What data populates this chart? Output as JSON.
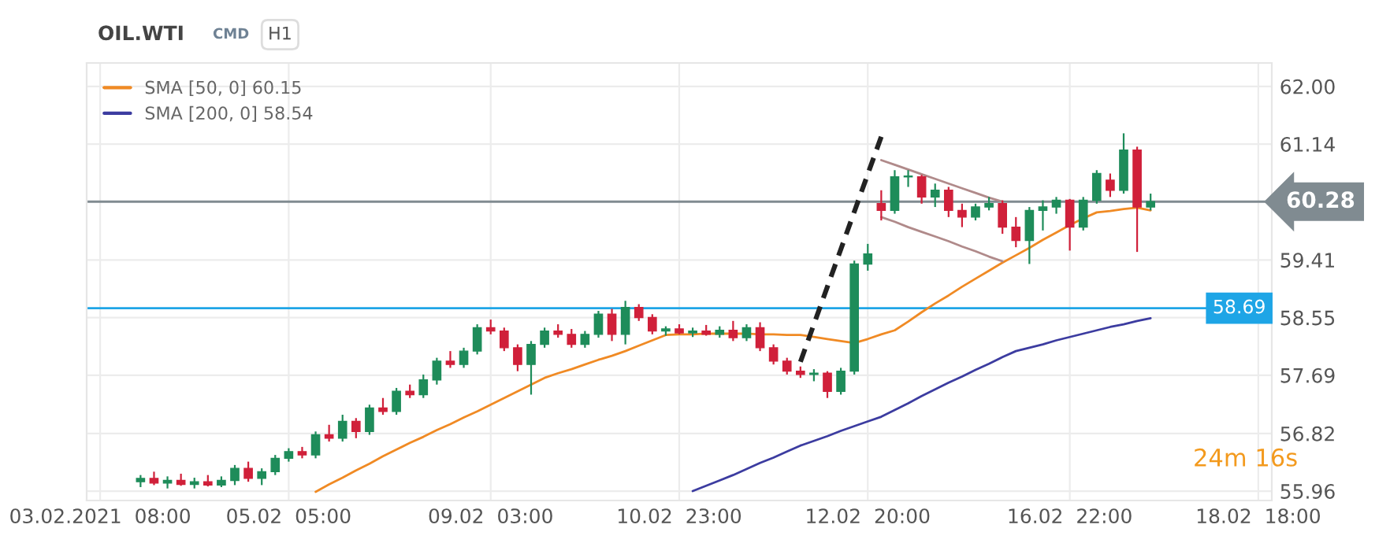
{
  "chart_data": {
    "type": "candlestick",
    "title": "OIL.WTI",
    "annotations": [
      "CMD",
      "H1",
      "24m 16s"
    ],
    "categories": [
      "03.02.2021  08:00",
      null,
      null,
      null,
      null,
      null,
      null,
      null,
      null,
      null,
      null,
      null,
      null,
      null,
      "05.02  05:00",
      null,
      null,
      null,
      null,
      null,
      null,
      null,
      null,
      null,
      null,
      null,
      null,
      null,
      null,
      "09.02  03:00",
      null,
      null,
      null,
      null,
      null,
      null,
      null,
      null,
      null,
      null,
      null,
      null,
      null,
      "10.02  23:00",
      null,
      null,
      null,
      null,
      null,
      null,
      null,
      null,
      null,
      null,
      null,
      null,
      null,
      "12.02  20:00",
      null,
      null,
      null,
      null,
      null,
      null,
      null,
      null,
      null,
      null,
      null,
      null,
      null,
      null,
      "16.02  22:00",
      null,
      null,
      null,
      null,
      null,
      null,
      null,
      null,
      null,
      null,
      null,
      null,
      null,
      "18.02  18:00"
    ],
    "ohlc": [
      null,
      null,
      null,
      [
        56.1,
        56.2,
        56.02,
        56.15
      ],
      [
        56.15,
        56.25,
        56.05,
        56.08
      ],
      [
        56.08,
        56.18,
        56.0,
        56.12
      ],
      [
        56.12,
        56.22,
        56.04,
        56.06
      ],
      [
        56.06,
        56.16,
        56.0,
        56.1
      ],
      [
        56.1,
        56.2,
        56.03,
        56.05
      ],
      [
        56.05,
        56.18,
        56.02,
        56.12
      ],
      [
        56.12,
        56.35,
        56.05,
        56.3
      ],
      [
        56.3,
        56.4,
        56.1,
        56.15
      ],
      [
        56.15,
        56.3,
        56.05,
        56.25
      ],
      [
        56.25,
        56.5,
        56.2,
        56.45
      ],
      [
        56.45,
        56.6,
        56.4,
        56.55
      ],
      [
        56.55,
        56.62,
        56.45,
        56.5
      ],
      [
        56.5,
        56.85,
        56.45,
        56.8
      ],
      [
        56.8,
        56.95,
        56.7,
        56.75
      ],
      [
        56.75,
        57.1,
        56.7,
        57.0
      ],
      [
        57.0,
        57.05,
        56.75,
        56.85
      ],
      [
        56.85,
        57.25,
        56.8,
        57.2
      ],
      [
        57.2,
        57.35,
        57.1,
        57.15
      ],
      [
        57.15,
        57.5,
        57.1,
        57.45
      ],
      [
        57.45,
        57.55,
        57.35,
        57.4
      ],
      [
        57.4,
        57.7,
        57.35,
        57.62
      ],
      [
        57.62,
        57.95,
        57.55,
        57.9
      ],
      [
        57.9,
        58.05,
        57.8,
        57.85
      ],
      [
        57.85,
        58.1,
        57.8,
        58.05
      ],
      [
        58.05,
        58.45,
        58.0,
        58.4
      ],
      [
        58.4,
        58.52,
        58.3,
        58.35
      ],
      [
        58.35,
        58.4,
        58.05,
        58.1
      ],
      [
        58.1,
        58.15,
        57.75,
        57.85
      ],
      [
        57.85,
        58.2,
        57.4,
        58.15
      ],
      [
        58.15,
        58.4,
        58.1,
        58.35
      ],
      [
        58.35,
        58.45,
        58.25,
        58.3
      ],
      [
        58.3,
        58.38,
        58.1,
        58.15
      ],
      [
        58.15,
        58.35,
        58.1,
        58.3
      ],
      [
        58.3,
        58.65,
        58.25,
        58.6
      ],
      [
        58.6,
        58.68,
        58.2,
        58.3
      ],
      [
        58.3,
        58.8,
        58.15,
        58.7
      ],
      [
        58.7,
        58.75,
        58.5,
        58.55
      ],
      [
        58.55,
        58.6,
        58.3,
        58.35
      ],
      [
        58.35,
        58.42,
        58.28,
        58.38
      ],
      [
        58.38,
        58.45,
        58.3,
        58.32
      ],
      [
        58.32,
        58.4,
        58.26,
        58.35
      ],
      [
        58.35,
        58.44,
        58.28,
        58.3
      ],
      [
        58.3,
        58.42,
        58.25,
        58.36
      ],
      [
        58.36,
        58.5,
        58.2,
        58.25
      ],
      [
        58.25,
        58.45,
        58.2,
        58.4
      ],
      [
        58.4,
        58.48,
        58.05,
        58.1
      ],
      [
        58.1,
        58.15,
        57.85,
        57.9
      ],
      [
        57.9,
        57.95,
        57.7,
        57.75
      ],
      [
        57.75,
        57.82,
        57.65,
        57.7
      ],
      [
        57.7,
        57.78,
        57.6,
        57.72
      ],
      [
        57.72,
        57.75,
        57.35,
        57.45
      ],
      [
        57.45,
        57.8,
        57.4,
        57.75
      ],
      [
        57.75,
        59.4,
        57.7,
        59.35
      ],
      [
        59.35,
        59.65,
        59.25,
        59.5
      ],
      [
        60.25,
        60.45,
        60.0,
        60.15
      ],
      [
        60.15,
        60.75,
        60.1,
        60.65
      ],
      [
        60.65,
        60.75,
        60.5,
        60.65
      ],
      [
        60.65,
        60.68,
        60.25,
        60.35
      ],
      [
        60.35,
        60.55,
        60.2,
        60.45
      ],
      [
        60.45,
        60.5,
        60.05,
        60.15
      ],
      [
        60.15,
        60.25,
        59.9,
        60.05
      ],
      [
        60.05,
        60.25,
        60.0,
        60.2
      ],
      [
        60.2,
        60.35,
        60.15,
        60.25
      ],
      [
        60.25,
        60.3,
        59.8,
        59.9
      ],
      [
        59.9,
        60.05,
        59.6,
        59.7
      ],
      [
        59.7,
        60.2,
        59.35,
        60.15
      ],
      [
        60.15,
        60.3,
        59.85,
        60.2
      ],
      [
        60.2,
        60.35,
        60.1,
        60.3
      ],
      [
        60.3,
        60.32,
        59.55,
        59.9
      ],
      [
        59.9,
        60.35,
        59.85,
        60.3
      ],
      [
        60.3,
        60.75,
        60.25,
        60.7
      ],
      [
        60.6,
        60.7,
        60.35,
        60.45
      ],
      [
        60.45,
        61.3,
        60.4,
        61.05
      ],
      [
        61.05,
        61.1,
        59.53,
        60.2
      ],
      [
        60.2,
        60.4,
        60.15,
        60.28
      ],
      null,
      null,
      null,
      null,
      null,
      null,
      null,
      null
    ],
    "colors": [
      null,
      null,
      null,
      "#1e8c5a",
      "#d0203a",
      "#1e8c5a",
      "#d0203a",
      "#1e8c5a",
      "#d0203a",
      "#1e8c5a",
      "#1e8c5a",
      "#d0203a",
      "#1e8c5a",
      "#1e8c5a",
      "#1e8c5a",
      "#d0203a",
      "#1e8c5a",
      "#d0203a",
      "#1e8c5a",
      "#d0203a",
      "#1e8c5a",
      "#d0203a",
      "#1e8c5a",
      "#d0203a",
      "#1e8c5a",
      "#1e8c5a",
      "#d0203a",
      "#1e8c5a",
      "#1e8c5a",
      "#d0203a",
      "#d0203a",
      "#d0203a",
      "#1e8c5a",
      "#1e8c5a",
      "#d0203a",
      "#d0203a",
      "#1e8c5a",
      "#1e8c5a",
      "#d0203a",
      "#1e8c5a",
      "#d0203a",
      "#d0203a",
      "#1e8c5a",
      "#d0203a",
      "#1e8c5a",
      "#d0203a",
      "#1e8c5a",
      "#d0203a",
      "#1e8c5a",
      "#d0203a",
      "#d0203a",
      "#d0203a",
      "#d0203a",
      "#1e8c5a",
      "#d0203a",
      "#1e8c5a",
      "#1e8c5a",
      "#1e8c5a",
      "#d0203a",
      "#1e8c5a",
      "#1e8c5a",
      "#d0203a",
      "#1e8c5a",
      "#d0203a",
      "#d0203a",
      "#1e8c5a",
      "#1e8c5a",
      "#d0203a",
      "#d0203a",
      "#1e8c5a",
      "#1e8c5a",
      "#1e8c5a",
      "#d0203a",
      "#1e8c5a",
      "#1e8c5a",
      "#d0203a",
      "#1e8c5a",
      "#d0203a",
      "#1e8c5a",
      null,
      null,
      null,
      null,
      null,
      null,
      null,
      null
    ],
    "series": [
      {
        "type": "line",
        "name": "SMA [50, 0] 60.15",
        "color": "#f08a24",
        "values": [
          null,
          null,
          null,
          null,
          null,
          null,
          null,
          null,
          null,
          null,
          null,
          null,
          null,
          null,
          null,
          null,
          55.95,
          56.06,
          56.16,
          56.27,
          56.37,
          56.48,
          56.58,
          56.68,
          56.77,
          56.87,
          56.96,
          57.06,
          57.15,
          57.25,
          57.35,
          57.45,
          57.55,
          57.65,
          57.72,
          57.78,
          57.85,
          57.92,
          57.98,
          58.05,
          58.13,
          58.21,
          58.29,
          58.3,
          58.3,
          58.31,
          58.31,
          58.31,
          58.31,
          58.3,
          58.3,
          58.29,
          58.29,
          58.26,
          58.23,
          58.2,
          58.17,
          58.23,
          58.3,
          58.36,
          58.49,
          58.63,
          58.76,
          58.88,
          59.01,
          59.13,
          59.25,
          59.37,
          59.48,
          59.59,
          59.71,
          59.82,
          59.93,
          60.03,
          60.12,
          60.14,
          60.17,
          60.19,
          60.15,
          null,
          null,
          null,
          null,
          null,
          null,
          null,
          null
        ]
      },
      {
        "type": "line",
        "name": "SMA [200, 0] 58.54",
        "color": "#3c3ca0",
        "values": [
          null,
          null,
          null,
          null,
          null,
          null,
          null,
          null,
          null,
          null,
          null,
          null,
          null,
          null,
          null,
          null,
          null,
          null,
          null,
          null,
          null,
          null,
          null,
          null,
          null,
          null,
          null,
          null,
          null,
          null,
          null,
          null,
          null,
          null,
          null,
          null,
          null,
          null,
          null,
          null,
          null,
          null,
          null,
          null,
          55.96,
          56.04,
          56.12,
          56.2,
          56.29,
          56.38,
          56.46,
          56.55,
          56.64,
          56.71,
          56.78,
          56.86,
          56.93,
          57.0,
          57.07,
          57.17,
          57.27,
          57.38,
          57.48,
          57.58,
          57.67,
          57.77,
          57.86,
          57.96,
          58.05,
          58.1,
          58.15,
          58.21,
          58.26,
          58.31,
          58.36,
          58.41,
          58.45,
          58.5,
          58.54,
          null,
          null,
          null,
          null,
          null,
          null,
          null,
          null
        ]
      },
      {
        "type": "line",
        "color": "#222222",
        "line_style": "dashed",
        "values": [
          null,
          null,
          null,
          null,
          null,
          null,
          null,
          null,
          null,
          null,
          null,
          null,
          null,
          null,
          null,
          null,
          null,
          null,
          null,
          null,
          null,
          null,
          null,
          null,
          null,
          null,
          null,
          null,
          null,
          null,
          null,
          null,
          null,
          null,
          null,
          null,
          null,
          null,
          null,
          null,
          null,
          null,
          null,
          null,
          null,
          null,
          null,
          null,
          null,
          null,
          null,
          null,
          57.89,
          58.45,
          59.01,
          59.57,
          60.13,
          60.69,
          61.25,
          null,
          null,
          null,
          null,
          null,
          null,
          null,
          null,
          null,
          null,
          null,
          null,
          null,
          null,
          null,
          null,
          null,
          null,
          null,
          null,
          null,
          null,
          null,
          null,
          null,
          null,
          null,
          null
        ]
      },
      {
        "type": "line",
        "color": "#b08a8a",
        "values": [
          null,
          null,
          null,
          null,
          null,
          null,
          null,
          null,
          null,
          null,
          null,
          null,
          null,
          null,
          null,
          null,
          null,
          null,
          null,
          null,
          null,
          null,
          null,
          null,
          null,
          null,
          null,
          null,
          null,
          null,
          null,
          null,
          null,
          null,
          null,
          null,
          null,
          null,
          null,
          null,
          null,
          null,
          null,
          null,
          null,
          null,
          null,
          null,
          null,
          null,
          null,
          null,
          null,
          null,
          null,
          null,
          null,
          null,
          60.9,
          60.83,
          60.76,
          60.69,
          60.62,
          60.55,
          60.48,
          60.41,
          60.34,
          60.28,
          null,
          null,
          null,
          null,
          null,
          null,
          null,
          null,
          null,
          null,
          null,
          null,
          null,
          null,
          null,
          null,
          null,
          null,
          null
        ]
      },
      {
        "type": "line",
        "color": "#b08a8a",
        "values": [
          null,
          null,
          null,
          null,
          null,
          null,
          null,
          null,
          null,
          null,
          null,
          null,
          null,
          null,
          null,
          null,
          null,
          null,
          null,
          null,
          null,
          null,
          null,
          null,
          null,
          null,
          null,
          null,
          null,
          null,
          null,
          null,
          null,
          null,
          null,
          null,
          null,
          null,
          null,
          null,
          null,
          null,
          null,
          null,
          null,
          null,
          null,
          null,
          null,
          null,
          null,
          null,
          null,
          null,
          null,
          null,
          null,
          null,
          60.05,
          59.98,
          59.9,
          59.83,
          59.76,
          59.69,
          59.61,
          59.54,
          59.46,
          59.39,
          null,
          null,
          null,
          null,
          null,
          null,
          null,
          null,
          null,
          null,
          null,
          null,
          null,
          null,
          null,
          null,
          null,
          null,
          null
        ]
      }
    ],
    "ref_lines": [
      {
        "axis": "y",
        "value": 60.28,
        "label": "60.28",
        "color": "#808b91"
      },
      {
        "axis": "y",
        "value": 58.69,
        "label": "58.69",
        "color": "#1ea5e6"
      }
    ],
    "ylim": [
      55.82,
      62.35
    ],
    "yticks": [
      {
        "value": 55.96,
        "label": "55.96"
      },
      {
        "value": 56.82,
        "label": "56.82"
      },
      {
        "value": 57.69,
        "label": "57.69"
      },
      {
        "value": 58.55,
        "label": "58.55"
      },
      {
        "value": 59.41,
        "label": "59.41"
      },
      {
        "value": 61.14,
        "label": "61.14"
      },
      {
        "value": 62,
        "label": "62.00"
      }
    ],
    "grid": true,
    "legend": "top left"
  }
}
